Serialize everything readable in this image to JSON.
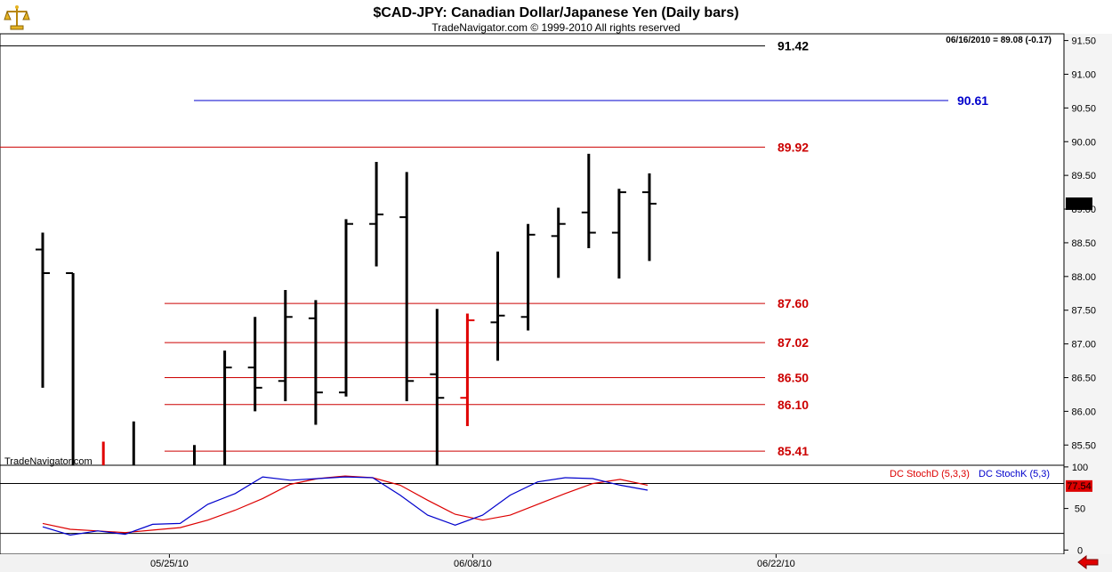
{
  "header": {
    "title": "$CAD-JPY:  Canadian Dollar/Japanese Yen  (Daily bars)",
    "subtitle": "TradeNavigator.com © 1999-2010 All rights reserved",
    "last_quote": "06/16/2010 = 89.08 (-0.17)",
    "watermark": "TradeNavigator.com"
  },
  "colors": {
    "up_bar": "#000000",
    "down_bar": "#e00000",
    "level_red": "#cc0000",
    "level_blue": "#0000cc",
    "stoch_d": "#dd0000",
    "stoch_k": "#0000cc",
    "price_tag_bg": "#000000",
    "stoch_tag_bg": "#dd0000"
  },
  "chart_data": [
    {
      "type": "ohlc",
      "panel": "price",
      "y_axis": {
        "min": 85.2,
        "max": 91.6,
        "ticks": [
          85.5,
          86.0,
          86.5,
          87.0,
          87.5,
          88.0,
          88.5,
          89.0,
          89.5,
          90.0,
          90.5,
          91.0,
          91.5
        ]
      },
      "x_axis": {
        "tick_labels": [
          "05/25/10",
          "06/08/10",
          "06/22/10"
        ],
        "tick_bar_index": [
          4,
          14,
          24
        ]
      },
      "last_price_label": "89.08",
      "bars": [
        {
          "o": 88.4,
          "h": 88.65,
          "l": 86.35,
          "c": 88.05,
          "color": "black"
        },
        {
          "o": 88.05,
          "h": 88.05,
          "l": 85.2,
          "c": 85.2,
          "color": "black"
        },
        {
          "o": 85.2,
          "h": 85.55,
          "l": 85.2,
          "c": 85.2,
          "color": "red"
        },
        {
          "o": 85.2,
          "h": 85.85,
          "l": 85.2,
          "c": 85.2,
          "color": "black"
        },
        {
          "o": 85.2,
          "h": 85.2,
          "l": 85.2,
          "c": 85.2,
          "color": "black"
        },
        {
          "o": 85.2,
          "h": 85.5,
          "l": 85.2,
          "c": 85.2,
          "color": "black"
        },
        {
          "o": 85.2,
          "h": 86.9,
          "l": 85.2,
          "c": 86.65,
          "color": "black"
        },
        {
          "o": 86.65,
          "h": 87.4,
          "l": 86.0,
          "c": 86.35,
          "color": "black"
        },
        {
          "o": 86.45,
          "h": 87.8,
          "l": 86.15,
          "c": 87.4,
          "color": "black"
        },
        {
          "o": 87.38,
          "h": 87.65,
          "l": 85.8,
          "c": 86.28,
          "color": "black"
        },
        {
          "o": 86.28,
          "h": 88.85,
          "l": 86.22,
          "c": 88.78,
          "color": "black"
        },
        {
          "o": 88.78,
          "h": 89.7,
          "l": 88.15,
          "c": 88.92,
          "color": "black"
        },
        {
          "o": 88.88,
          "h": 89.55,
          "l": 86.15,
          "c": 86.45,
          "color": "black"
        },
        {
          "o": 86.55,
          "h": 87.52,
          "l": 85.2,
          "c": 86.2,
          "color": "black"
        },
        {
          "o": 86.2,
          "h": 87.45,
          "l": 85.78,
          "c": 87.35,
          "color": "red"
        },
        {
          "o": 87.32,
          "h": 88.37,
          "l": 86.75,
          "c": 87.42,
          "color": "black"
        },
        {
          "o": 87.4,
          "h": 88.78,
          "l": 87.2,
          "c": 88.62,
          "color": "black"
        },
        {
          "o": 88.6,
          "h": 89.02,
          "l": 87.98,
          "c": 88.78,
          "color": "black"
        },
        {
          "o": 88.95,
          "h": 89.82,
          "l": 88.42,
          "c": 88.65,
          "color": "black"
        },
        {
          "o": 88.65,
          "h": 89.3,
          "l": 87.97,
          "c": 89.25,
          "color": "black"
        },
        {
          "o": 89.25,
          "h": 89.53,
          "l": 88.23,
          "c": 89.08,
          "color": "black"
        }
      ],
      "levels": [
        {
          "value": 91.42,
          "label": "91.42",
          "color": "black"
        },
        {
          "value": 90.61,
          "label": "90.61",
          "color": "blue"
        },
        {
          "value": 89.92,
          "label": "89.92",
          "color": "red"
        },
        {
          "value": 87.6,
          "label": "87.60",
          "color": "red"
        },
        {
          "value": 87.02,
          "label": "87.02",
          "color": "red"
        },
        {
          "value": 86.5,
          "label": "86.50",
          "color": "red"
        },
        {
          "value": 86.1,
          "label": "86.10",
          "color": "red"
        },
        {
          "value": 85.41,
          "label": "85.41",
          "color": "red"
        }
      ]
    },
    {
      "type": "line",
      "panel": "stochastic",
      "y_axis": {
        "min": -5,
        "max": 102,
        "ticks": [
          0,
          50,
          100
        ]
      },
      "reference_lines": [
        20,
        80
      ],
      "legend": [
        "DC StochD (5,3,3)",
        "DC StochK (5,3)"
      ],
      "last_value_label": "77.54",
      "series": [
        {
          "name": "DC StochD (5,3,3)",
          "color": "red",
          "values": [
            32,
            25,
            23,
            21,
            24,
            27,
            36,
            48,
            62,
            79,
            86,
            89,
            87,
            78,
            60,
            43,
            36,
            42,
            55,
            68,
            80,
            85,
            78
          ]
        },
        {
          "name": "DC StochK (5,3)",
          "color": "blue",
          "values": [
            28,
            18,
            23,
            19,
            31,
            32,
            55,
            68,
            88,
            84,
            86,
            88,
            87,
            66,
            42,
            30,
            42,
            66,
            82,
            87,
            86,
            78,
            72
          ]
        }
      ]
    }
  ]
}
